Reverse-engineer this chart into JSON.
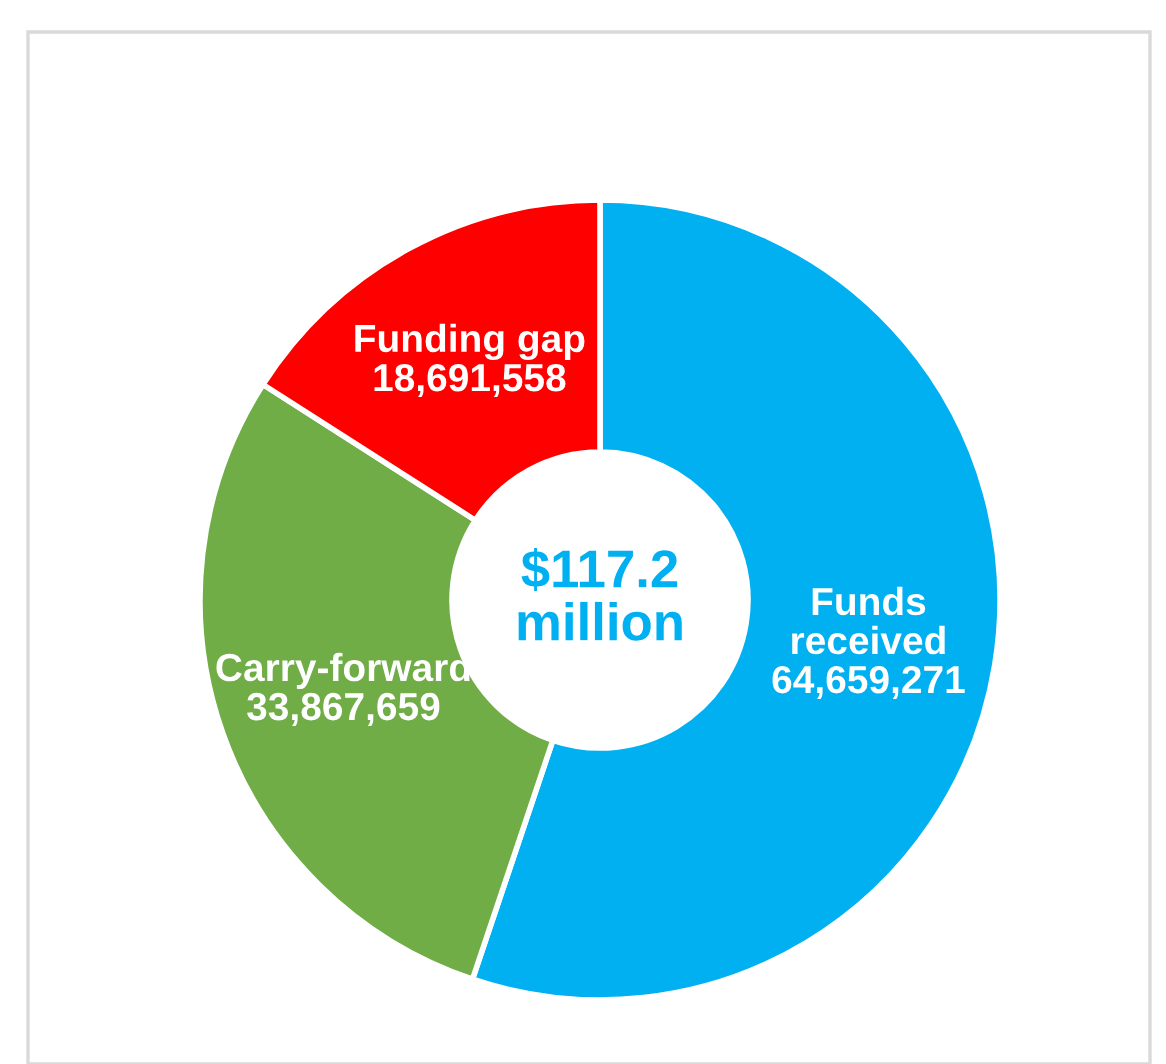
{
  "chart_data": {
    "type": "donut",
    "categories": [
      "Funds received",
      "Carry-forward",
      "Funding gap"
    ],
    "values": [
      64659271,
      33867659,
      18691558
    ],
    "colors": [
      "#00b0f0",
      "#70ad47",
      "#ff0000"
    ],
    "value_labels": [
      "64,659,271",
      "33,867,659",
      "18,691,558"
    ],
    "legend": false,
    "annotations": [
      "$117.2\nmillion"
    ]
  }
}
